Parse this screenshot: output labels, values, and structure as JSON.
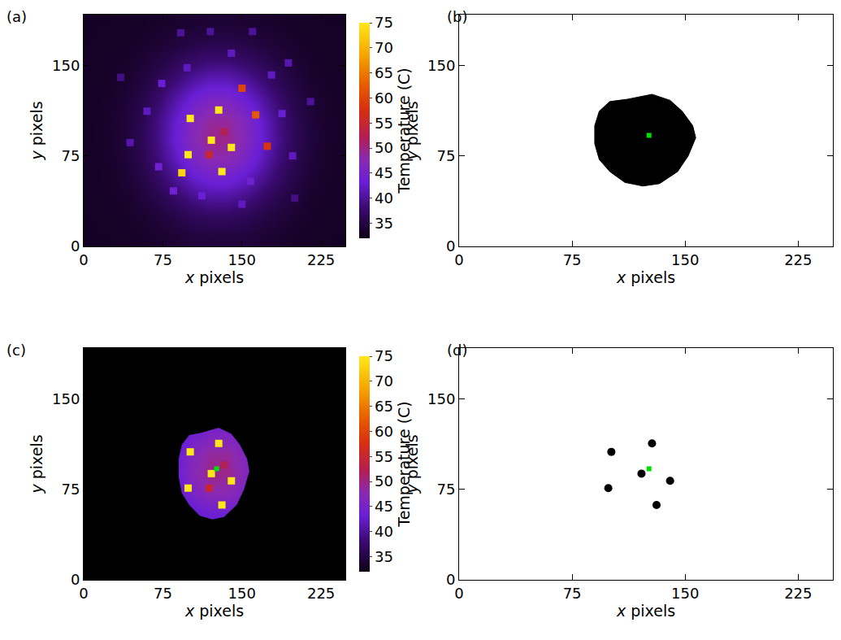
{
  "chart_data": [
    {
      "label": "(a)",
      "type": "heatmap",
      "x_label": "x pixels",
      "y_label": "y pixels",
      "xlim": [
        0,
        248
      ],
      "ylim": [
        0,
        192
      ],
      "xticks": [
        0,
        75,
        150,
        225
      ],
      "yticks": [
        0,
        75,
        150
      ],
      "grid": false,
      "x": [
        8,
        24,
        40,
        56,
        72,
        88,
        104,
        120,
        136,
        152,
        168,
        184,
        200,
        216,
        232,
        248
      ],
      "y": [
        8,
        24,
        40,
        56,
        72,
        88,
        104,
        120,
        136,
        152,
        168,
        184
      ],
      "z": [
        [
          33,
          33,
          33.2,
          33.4,
          33.7,
          34.1,
          34.6,
          34.8,
          34.8,
          34.6,
          34.1,
          33.7,
          33.4,
          33.2,
          33,
          33
        ],
        [
          33,
          33.1,
          33.4,
          33.8,
          34.5,
          35.4,
          36.4,
          36.9,
          36.9,
          36.4,
          35.4,
          34.5,
          33.8,
          33.4,
          33.1,
          33
        ],
        [
          33.1,
          33.3,
          33.6,
          34.5,
          35.7,
          37.4,
          39.1,
          40.2,
          40.2,
          39.1,
          37.4,
          35.7,
          34.5,
          33.6,
          33.3,
          33.1
        ],
        [
          33.1,
          33.4,
          34,
          35.3,
          37.3,
          39.9,
          42.5,
          44.1,
          44.1,
          42.5,
          39.9,
          37.3,
          35.3,
          34,
          33.4,
          33.1
        ],
        [
          33.2,
          33.5,
          34.3,
          36,
          38.6,
          42.1,
          45.5,
          47.7,
          47.7,
          45.5,
          42.1,
          38.6,
          36,
          34.3,
          33.5,
          33.2
        ],
        [
          33.2,
          33.6,
          34.5,
          36.4,
          39.4,
          43.3,
          47.2,
          49.7,
          49.7,
          47.2,
          43.3,
          39.4,
          36.4,
          34.5,
          33.6,
          33.2
        ],
        [
          33.2,
          33.6,
          34.4,
          36.2,
          39.1,
          42.9,
          46.6,
          48.9,
          48.9,
          46.6,
          42.9,
          39.1,
          36.2,
          34.4,
          33.6,
          33.2
        ],
        [
          33.1,
          33.5,
          34.2,
          35.6,
          38,
          41.1,
          44.1,
          46,
          46,
          44.1,
          41.1,
          38,
          35.6,
          34.2,
          33.5,
          33.1
        ],
        [
          33.1,
          33.3,
          33.8,
          34.8,
          36.5,
          38.6,
          40.8,
          42.1,
          42.1,
          40.8,
          38.6,
          36.5,
          34.8,
          33.8,
          33.3,
          33.1
        ],
        [
          33.1,
          33.2,
          33.5,
          34.1,
          35.1,
          36.4,
          37.6,
          38.4,
          38.4,
          37.6,
          36.4,
          35.1,
          34.1,
          33.5,
          33.2,
          33.1
        ],
        [
          33,
          33.1,
          33.2,
          33.6,
          34,
          34.7,
          35.3,
          35.7,
          35.7,
          35.3,
          34.7,
          34,
          33.6,
          33.2,
          33.1,
          33
        ],
        [
          33,
          33,
          33.1,
          33.2,
          33.5,
          33.7,
          34,
          34.2,
          34.2,
          34,
          33.7,
          33.5,
          33.2,
          33.1,
          33,
          33
        ]
      ],
      "hot_spots": {
        "x": [
          101,
          128,
          99,
          121,
          140,
          131,
          93,
          163,
          150,
          174,
          119,
          133,
          71,
          85,
          112,
          158,
          188,
          60,
          74,
          98,
          140,
          178,
          150,
          198,
          194,
          44,
          120,
          92,
          160,
          215,
          35,
          200
        ],
        "y": [
          106,
          113,
          76,
          88,
          82,
          62,
          61,
          109,
          131,
          83,
          76,
          95,
          66,
          46,
          42,
          54,
          110,
          112,
          135,
          148,
          160,
          142,
          35,
          75,
          152,
          86,
          178,
          177,
          178,
          120,
          140,
          40
        ],
        "values": [
          75,
          75,
          75,
          75,
          75,
          75,
          73,
          62,
          60,
          58,
          55,
          52,
          44,
          44,
          43,
          44,
          43,
          42,
          43,
          42,
          42,
          42,
          42,
          42,
          41,
          41,
          40,
          40,
          40,
          40,
          39,
          39
        ]
      },
      "colorbar": {
        "title": "Temperature (C)",
        "range": [
          32,
          75
        ],
        "ticks": [
          35,
          40,
          45,
          50,
          55,
          60,
          65,
          70,
          75
        ]
      }
    },
    {
      "label": "(b)",
      "type": "mask",
      "x_label": "x pixels",
      "y_label": "y pixels",
      "xlim": [
        0,
        248
      ],
      "ylim": [
        0,
        192
      ],
      "xticks": [
        0,
        75,
        150,
        225
      ],
      "yticks": [
        0,
        75,
        150
      ],
      "grid": false,
      "mask": {
        "x": [
          93,
          100,
          112,
          128,
          140,
          148,
          155,
          157,
          152,
          145,
          133,
          122,
          110,
          100,
          93,
          90,
          90
        ],
        "y": [
          112,
          120,
          122,
          126,
          121,
          112,
          100,
          90,
          75,
          62,
          52,
          50,
          53,
          62,
          72,
          85,
          100
        ],
        "color": "#000000"
      },
      "centroid": {
        "x": 126,
        "y": 92,
        "color": "#00e000"
      }
    },
    {
      "label": "(c)",
      "type": "heatmap",
      "x_label": "x pixels",
      "y_label": "y pixels",
      "xlim": [
        0,
        248
      ],
      "ylim": [
        0,
        192
      ],
      "xticks": [
        0,
        75,
        150,
        225
      ],
      "yticks": [
        0,
        75,
        150
      ],
      "grid": false,
      "x": [
        8,
        24,
        40,
        56,
        72,
        88,
        104,
        120,
        136,
        152,
        168,
        184,
        200,
        216,
        232,
        248
      ],
      "y": [
        8,
        24,
        40,
        56,
        72,
        88,
        104,
        120,
        136,
        152,
        168,
        184
      ],
      "z": [
        [
          33,
          33,
          33.2,
          33.4,
          33.7,
          34.1,
          34.6,
          34.8,
          34.8,
          34.6,
          34.1,
          33.7,
          33.4,
          33.2,
          33,
          33
        ],
        [
          33,
          33.1,
          33.4,
          33.8,
          34.5,
          35.4,
          36.4,
          36.9,
          36.9,
          36.4,
          35.4,
          34.5,
          33.8,
          33.4,
          33.1,
          33
        ],
        [
          33.1,
          33.3,
          33.6,
          34.5,
          35.7,
          37.4,
          39.1,
          40.2,
          40.2,
          39.1,
          37.4,
          35.7,
          34.5,
          33.6,
          33.3,
          33.1
        ],
        [
          33.1,
          33.4,
          34,
          35.3,
          37.3,
          39.9,
          42.5,
          44.1,
          44.1,
          42.5,
          39.9,
          37.3,
          35.3,
          34,
          33.4,
          33.1
        ],
        [
          33.2,
          33.5,
          34.3,
          36,
          38.6,
          42.1,
          45.5,
          47.7,
          47.7,
          45.5,
          42.1,
          38.6,
          36,
          34.3,
          33.5,
          33.2
        ],
        [
          33.2,
          33.6,
          34.5,
          36.4,
          39.4,
          43.3,
          47.2,
          49.7,
          49.7,
          47.2,
          43.3,
          39.4,
          36.4,
          34.5,
          33.6,
          33.2
        ],
        [
          33.2,
          33.6,
          34.4,
          36.2,
          39.1,
          42.9,
          46.6,
          48.9,
          48.9,
          46.6,
          42.9,
          39.1,
          36.2,
          34.4,
          33.6,
          33.2
        ],
        [
          33.1,
          33.5,
          34.2,
          35.6,
          38,
          41.1,
          44.1,
          46,
          46,
          44.1,
          41.1,
          38,
          35.6,
          34.2,
          33.5,
          33.1
        ],
        [
          33.1,
          33.3,
          33.8,
          34.8,
          36.5,
          38.6,
          40.8,
          42.1,
          42.1,
          40.8,
          38.6,
          36.5,
          34.8,
          33.8,
          33.3,
          33.1
        ],
        [
          33.1,
          33.2,
          33.5,
          34.1,
          35.1,
          36.4,
          37.6,
          38.4,
          38.4,
          37.6,
          36.4,
          35.1,
          34.1,
          33.5,
          33.2,
          33.1
        ],
        [
          33,
          33.1,
          33.2,
          33.6,
          34,
          34.7,
          35.3,
          35.7,
          35.7,
          35.3,
          34.7,
          34,
          33.6,
          33.2,
          33.1,
          33
        ],
        [
          33,
          33,
          33.1,
          33.2,
          33.5,
          33.7,
          34,
          34.2,
          34.2,
          34,
          33.7,
          33.5,
          33.2,
          33.1,
          33,
          33
        ]
      ],
      "hot_spots": {
        "x": [
          101,
          128,
          99,
          121,
          140,
          131,
          119,
          133
        ],
        "y": [
          106,
          113,
          76,
          88,
          82,
          62,
          76,
          95
        ],
        "values": [
          75,
          75,
          75,
          75,
          75,
          75,
          55,
          52
        ]
      },
      "mask": {
        "x": [
          93,
          100,
          112,
          128,
          140,
          148,
          155,
          157,
          152,
          145,
          133,
          122,
          110,
          100,
          93,
          90,
          90
        ],
        "y": [
          112,
          120,
          122,
          126,
          121,
          112,
          100,
          90,
          75,
          62,
          52,
          50,
          53,
          62,
          72,
          85,
          100
        ],
        "color": "#000000"
      },
      "centroid": {
        "x": 126,
        "y": 92,
        "color": "#00e000"
      },
      "colorbar": {
        "title": "Temperature (C)",
        "range": [
          32,
          75
        ],
        "ticks": [
          35,
          40,
          45,
          50,
          55,
          60,
          65,
          70,
          75
        ]
      }
    },
    {
      "label": "(d)",
      "type": "scatter",
      "x_label": "x pixels",
      "y_label": "y pixels",
      "xlim": [
        0,
        248
      ],
      "ylim": [
        0,
        192
      ],
      "xticks": [
        0,
        75,
        150,
        225
      ],
      "yticks": [
        0,
        75,
        150
      ],
      "grid": false,
      "points": {
        "x": [
          101,
          128,
          99,
          121,
          140,
          131
        ],
        "y": [
          106,
          113,
          76,
          88,
          82,
          62
        ],
        "color": "#000000"
      },
      "centroid": {
        "x": 126,
        "y": 92,
        "color": "#00e000"
      }
    }
  ]
}
